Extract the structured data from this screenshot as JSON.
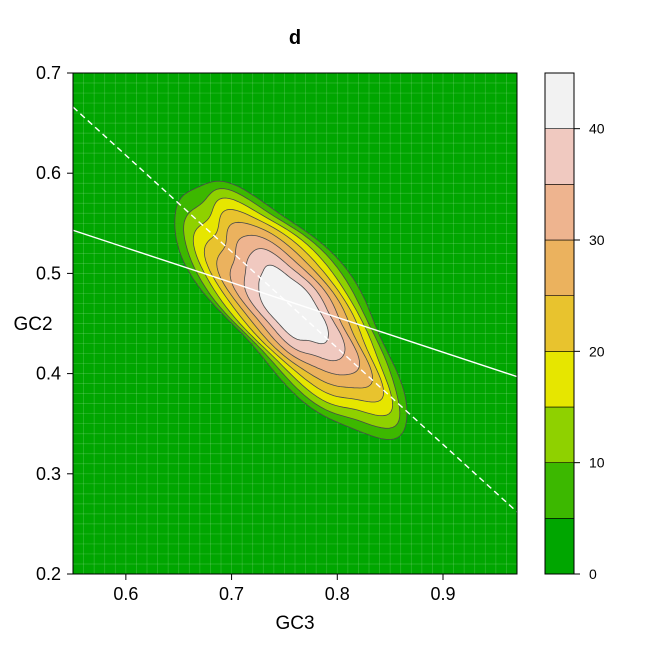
{
  "chart_data": {
    "type": "contour",
    "title": "d",
    "xlabel": "GC3",
    "ylabel": "GC2",
    "xlim": [
      0.55,
      0.97
    ],
    "ylim": [
      0.2,
      0.7
    ],
    "xticks": [
      "0.6",
      "0.7",
      "0.8",
      "0.9"
    ],
    "yticks": [
      "0.2",
      "0.3",
      "0.4",
      "0.5",
      "0.6",
      "0.7"
    ],
    "grid": true,
    "density_peak": {
      "x": 0.757,
      "y": 0.467
    },
    "contour_levels": [
      5,
      10,
      15,
      20,
      25,
      30,
      35,
      40
    ],
    "colorbar": {
      "range": [
        0,
        45
      ],
      "tick_labels": [
        "0",
        "10",
        "20",
        "30",
        "40"
      ],
      "bands": [
        {
          "from": 0,
          "to": 5,
          "color": "#00a600"
        },
        {
          "from": 5,
          "to": 10,
          "color": "#3cb800"
        },
        {
          "from": 10,
          "to": 15,
          "color": "#8fd100"
        },
        {
          "from": 15,
          "to": 20,
          "color": "#e6e600"
        },
        {
          "from": 20,
          "to": 25,
          "color": "#e8c32e"
        },
        {
          "from": 25,
          "to": 30,
          "color": "#ebb25e"
        },
        {
          "from": 30,
          "to": 35,
          "color": "#eeb48f"
        },
        {
          "from": 35,
          "to": 40,
          "color": "#f0c9c0"
        },
        {
          "from": 40,
          "to": 45,
          "color": "#f2f2f2"
        }
      ]
    },
    "lines": [
      {
        "style": "solid",
        "color": "#ffffff",
        "points": [
          [
            0.55,
            0.543
          ],
          [
            0.97,
            0.397
          ]
        ]
      },
      {
        "style": "dashed",
        "color": "#ffffff",
        "points": [
          [
            0.55,
            0.666
          ],
          [
            0.97,
            0.262
          ]
        ]
      }
    ]
  }
}
